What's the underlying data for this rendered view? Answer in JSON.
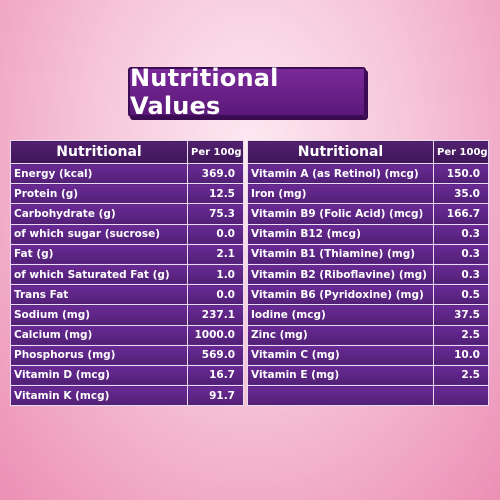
{
  "title": "Nutritional Values",
  "left_table": {
    "header": {
      "name": "Nutritional",
      "unit": "Per 100g"
    },
    "rows": [
      {
        "label": "Energy (kcal)",
        "value": "369.0"
      },
      {
        "label": "Protein (g)",
        "value": "12.5"
      },
      {
        "label": "Carbohydrate (g)",
        "value": "75.3"
      },
      {
        "label": " of which sugar (sucrose)",
        "value": "0.0"
      },
      {
        "label": "Fat (g)",
        "value": "2.1"
      },
      {
        "label": "of which Saturated Fat (g)",
        "value": "1.0"
      },
      {
        "label": "Trans Fat",
        "value": "0.0"
      },
      {
        "label": "Sodium (mg)",
        "value": "237.1"
      },
      {
        "label": "Calcium (mg)",
        "value": "1000.0"
      },
      {
        "label": "Phosphorus (mg)",
        "value": "569.0"
      },
      {
        "label": "Vitamin D (mcg)",
        "value": "16.7"
      },
      {
        "label": "Vitamin K (mcg)",
        "value": "91.7"
      }
    ]
  },
  "right_table": {
    "header": {
      "name": "Nutritional",
      "unit": "Per 100g"
    },
    "rows": [
      {
        "label": "Vitamin A (as Retinol) (mcg)",
        "value": "150.0"
      },
      {
        "label": "Iron (mg)",
        "value": "35.0"
      },
      {
        "label": "Vitamin B9 (Folic Acid) (mcg)",
        "value": "166.7"
      },
      {
        "label": "Vitamin B12 (mcg)",
        "value": "0.3"
      },
      {
        "label": "Vitamin B1 (Thiamine) (mg)",
        "value": "0.3"
      },
      {
        "label": "Vitamin B2 (Riboflavine) (mg)",
        "value": "0.3"
      },
      {
        "label": "Vitamin B6 (Pyridoxine) (mg)",
        "value": "0.5"
      },
      {
        "label": "Iodine (mcg)",
        "value": "37.5"
      },
      {
        "label": "Zinc (mg)",
        "value": "2.5"
      },
      {
        "label": "Vitamin C (mg)",
        "value": "10.0"
      },
      {
        "label": "Vitamin E (mg)",
        "value": "2.5"
      },
      {
        "label": "",
        "value": ""
      }
    ]
  }
}
